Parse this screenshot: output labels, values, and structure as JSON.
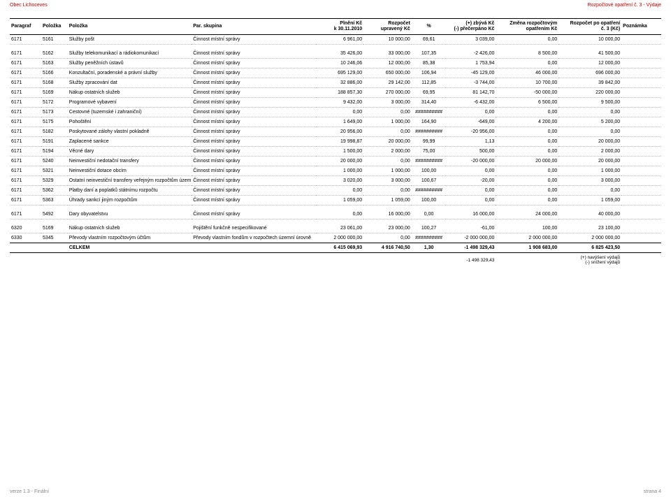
{
  "meta": {
    "header_left": "Obec Lichoceves",
    "header_right": "Rozpočtové opatření č. 3 - Výdaje",
    "footer_left": "verze 1.3 - Finální",
    "footer_right": "strana 4"
  },
  "columns": {
    "0": "Paragraf",
    "1": "Položka",
    "2": "Položka",
    "3": "Par. skupina",
    "4a": "Plnění Kč",
    "4b": "k 30.11.2010",
    "5a": "Rozpočet",
    "5b": "upravený Kč",
    "6": "%",
    "7a": "(+) zbývá Kč",
    "7b": "(-) přečerpáno Kč",
    "8a": "Změna rozpočtovým",
    "8b": "opatřením Kč",
    "9a": "Rozpočet po opatření",
    "9b": "č. 3 (Kč)",
    "10": "Poznámka"
  },
  "style": {
    "font_size_pt": 7,
    "header_border": "#000000",
    "row_divider": "#bbbbbb",
    "text_color": "#000000",
    "header_text_color": "#cc0000",
    "footer_text_color": "#888888",
    "align": [
      "left",
      "left",
      "left",
      "left",
      "right",
      "right",
      "center",
      "right",
      "right",
      "right",
      "left"
    ]
  },
  "groups": [
    {
      "rows": [
        [
          "6171",
          "5161",
          "Služby pošt",
          "Činnost místní správy",
          "6 961,00",
          "10 000,00",
          "69,61",
          "3 039,00",
          "0,00",
          "10 000,00",
          ""
        ]
      ]
    },
    {
      "rows": [
        [
          "6171",
          "5162",
          "Služby telekomunikací a rádiokomunikací",
          "Činnost místní správy",
          "35 426,00",
          "33 000,00",
          "107,35",
          "-2 426,00",
          "8 500,00",
          "41 500,00",
          ""
        ],
        [
          "6171",
          "5163",
          "Služby peněžních ústavů",
          "Činnost místní správy",
          "10 246,06",
          "12 000,00",
          "85,38",
          "1 753,94",
          "0,00",
          "12 000,00",
          ""
        ],
        [
          "6171",
          "5166",
          "Konzultační, poradenské a právní služby",
          "Činnost místní správy",
          "695 129,00",
          "650 000,00",
          "106,94",
          "-45 129,00",
          "46 000,00",
          "696 000,00",
          ""
        ],
        [
          "6171",
          "5168",
          "Služby zpracování dat",
          "Činnost místní správy",
          "32 886,00",
          "29 142,00",
          "112,85",
          "-3 744,00",
          "10 700,00",
          "39 842,00",
          ""
        ],
        [
          "6171",
          "5169",
          "Nákup ostatních služeb",
          "Činnost místní správy",
          "188 857,30",
          "270 000,00",
          "69,95",
          "81 142,70",
          "-50 000,00",
          "220 000,00",
          ""
        ],
        [
          "6171",
          "5172",
          "Programové vybavení",
          "Činnost místní správy",
          "9 432,00",
          "3 000,00",
          "314,40",
          "-6 432,00",
          "6 500,00",
          "9 500,00",
          ""
        ],
        [
          "6171",
          "5173",
          "Cestovné (tuzemské i zahraniční)",
          "Činnost místní správy",
          "0,00",
          "0,00",
          "##########",
          "0,00",
          "0,00",
          "0,00",
          ""
        ],
        [
          "6171",
          "5175",
          "Pohoštění",
          "Činnost místní správy",
          "1 649,00",
          "1 000,00",
          "164,90",
          "-649,00",
          "4 200,00",
          "5 200,00",
          ""
        ],
        [
          "6171",
          "5182",
          "Poskytované zálohy vlastní pokladně",
          "Činnost místní správy",
          "20 956,00",
          "0,00",
          "##########",
          "-20 956,00",
          "0,00",
          "0,00",
          ""
        ],
        [
          "6171",
          "5191",
          "Zaplacené sankce",
          "Činnost místní správy",
          "19 998,87",
          "20 000,00",
          "99,99",
          "1,13",
          "0,00",
          "20 000,00",
          ""
        ],
        [
          "6171",
          "5194",
          "Věcné dary",
          "Činnost místní správy",
          "1 500,00",
          "2 000,00",
          "75,00",
          "500,00",
          "0,00",
          "2 000,00",
          ""
        ],
        [
          "6171",
          "5240",
          "Neinvestiční nedotační transfery",
          "Činnost místní správy",
          "20 000,00",
          "0,00",
          "##########",
          "-20 000,00",
          "20 000,00",
          "20 000,00",
          ""
        ],
        [
          "6171",
          "5321",
          "Neinvestiční dotace obcím",
          "Činnost místní správy",
          "1 000,00",
          "1 000,00",
          "100,00",
          "0,00",
          "0,00",
          "1 000,00",
          ""
        ],
        [
          "6171",
          "5329",
          "Ostatní neinvestiční transfery veřejným rozpočtům územní úrovně",
          "Činnost místní správy",
          "3 020,00",
          "3 000,00",
          "100,67",
          "-20,00",
          "0,00",
          "3 000,00",
          ""
        ],
        [
          "6171",
          "5362",
          "Platby daní a poplatků státnímu rozpočtu",
          "Činnost místní správy",
          "0,00",
          "0,00",
          "##########",
          "0,00",
          "0,00",
          "0,00",
          ""
        ],
        [
          "6171",
          "5363",
          "Úhrady sankcí jiným rozpočtům",
          "Činnost místní správy",
          "1 059,00",
          "1 059,00",
          "100,00",
          "0,00",
          "0,00",
          "1 059,00",
          ""
        ]
      ]
    },
    {
      "rows": [
        [
          "6171",
          "5492",
          "Dary obyvatelstvu",
          "Činnost místní správy",
          "0,00",
          "16 000,00",
          "0,00",
          "16 000,00",
          "24 000,00",
          "40 000,00",
          ""
        ]
      ]
    },
    {
      "rows": [
        [
          "6320",
          "5169",
          "Nákup ostatních služeb",
          "Pojištění funkčně nespecifikované",
          "23 061,00",
          "23 000,00",
          "100,27",
          "-61,00",
          "100,00",
          "23 100,00",
          ""
        ],
        [
          "6330",
          "5345",
          "Převody vlastním rozpočtovým účtům",
          "Převody vlastním fondům v rozpočtech územní úrovně",
          "2 000 000,00",
          "0,00",
          "##########",
          "-2 000 000,00",
          "2 000 000,00",
          "2 000 000,00",
          ""
        ]
      ]
    }
  ],
  "total": [
    "",
    "",
    "CELKEM",
    "",
    "6 415 069,93",
    "4 916 740,50",
    "1,30",
    "-1 498 329,43",
    "1 908 683,00",
    "6 825 423,50",
    ""
  ],
  "footnote": {
    "under_col": 7,
    "value": "-1 498 329,43",
    "right_lines": [
      "(+) navýšení výdajů",
      "(-) snížení výdajů"
    ]
  }
}
